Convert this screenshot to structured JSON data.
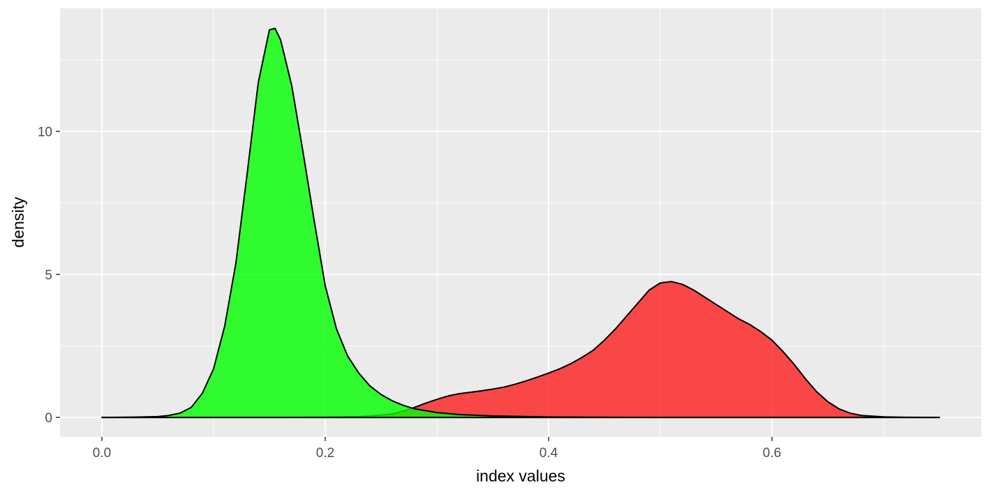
{
  "chart_data": {
    "type": "area",
    "xlabel": "index values",
    "ylabel": "density",
    "xlim": [
      -0.0375,
      0.7875
    ],
    "ylim": [
      -0.68,
      14.3
    ],
    "x_ticks": [
      0.0,
      0.2,
      0.4,
      0.6
    ],
    "x_tick_labels": [
      "0.0",
      "0.2",
      "0.4",
      "0.6"
    ],
    "y_ticks": [
      0,
      5,
      10
    ],
    "y_tick_labels": [
      "0",
      "5",
      "10"
    ],
    "grid": true,
    "legend": "none",
    "colors": {
      "panel": "#ebebeb",
      "grid": "#ffffff",
      "outline": "#000000",
      "tick_mark": "#333333"
    },
    "series": [
      {
        "fill": "#ff0000",
        "opacity": 0.7,
        "points": [
          [
            0.0,
            0.0
          ],
          [
            0.15,
            0.0
          ],
          [
            0.2,
            0.01
          ],
          [
            0.23,
            0.03
          ],
          [
            0.25,
            0.08
          ],
          [
            0.26,
            0.12
          ],
          [
            0.27,
            0.22
          ],
          [
            0.28,
            0.35
          ],
          [
            0.29,
            0.5
          ],
          [
            0.3,
            0.63
          ],
          [
            0.31,
            0.75
          ],
          [
            0.32,
            0.83
          ],
          [
            0.33,
            0.88
          ],
          [
            0.34,
            0.93
          ],
          [
            0.35,
            0.99
          ],
          [
            0.36,
            1.06
          ],
          [
            0.37,
            1.16
          ],
          [
            0.38,
            1.28
          ],
          [
            0.39,
            1.41
          ],
          [
            0.4,
            1.55
          ],
          [
            0.41,
            1.7
          ],
          [
            0.42,
            1.88
          ],
          [
            0.43,
            2.1
          ],
          [
            0.44,
            2.35
          ],
          [
            0.45,
            2.7
          ],
          [
            0.46,
            3.1
          ],
          [
            0.47,
            3.55
          ],
          [
            0.48,
            4.0
          ],
          [
            0.49,
            4.45
          ],
          [
            0.5,
            4.7
          ],
          [
            0.51,
            4.75
          ],
          [
            0.52,
            4.65
          ],
          [
            0.53,
            4.45
          ],
          [
            0.54,
            4.2
          ],
          [
            0.55,
            3.95
          ],
          [
            0.56,
            3.7
          ],
          [
            0.57,
            3.45
          ],
          [
            0.58,
            3.25
          ],
          [
            0.59,
            3.0
          ],
          [
            0.6,
            2.7
          ],
          [
            0.61,
            2.3
          ],
          [
            0.62,
            1.85
          ],
          [
            0.63,
            1.35
          ],
          [
            0.64,
            0.9
          ],
          [
            0.65,
            0.55
          ],
          [
            0.66,
            0.3
          ],
          [
            0.67,
            0.15
          ],
          [
            0.68,
            0.07
          ],
          [
            0.7,
            0.02
          ],
          [
            0.72,
            0.005
          ],
          [
            0.75,
            0.0
          ]
        ]
      },
      {
        "fill": "#00ff00",
        "opacity": 0.8,
        "points": [
          [
            0.0,
            0.0
          ],
          [
            0.03,
            0.01
          ],
          [
            0.05,
            0.03
          ],
          [
            0.06,
            0.07
          ],
          [
            0.07,
            0.15
          ],
          [
            0.08,
            0.35
          ],
          [
            0.09,
            0.85
          ],
          [
            0.1,
            1.7
          ],
          [
            0.11,
            3.2
          ],
          [
            0.12,
            5.4
          ],
          [
            0.13,
            8.5
          ],
          [
            0.14,
            11.7
          ],
          [
            0.15,
            13.55
          ],
          [
            0.155,
            13.6
          ],
          [
            0.16,
            13.2
          ],
          [
            0.17,
            11.6
          ],
          [
            0.18,
            9.3
          ],
          [
            0.19,
            6.9
          ],
          [
            0.2,
            4.6
          ],
          [
            0.21,
            3.1
          ],
          [
            0.22,
            2.15
          ],
          [
            0.23,
            1.55
          ],
          [
            0.24,
            1.1
          ],
          [
            0.25,
            0.8
          ],
          [
            0.26,
            0.58
          ],
          [
            0.27,
            0.42
          ],
          [
            0.28,
            0.3
          ],
          [
            0.3,
            0.17
          ],
          [
            0.32,
            0.1
          ],
          [
            0.35,
            0.05
          ],
          [
            0.4,
            0.015
          ],
          [
            0.45,
            0.005
          ],
          [
            0.5,
            0.0
          ],
          [
            0.6,
            0.0
          ],
          [
            0.75,
            0.0
          ]
        ]
      }
    ]
  }
}
